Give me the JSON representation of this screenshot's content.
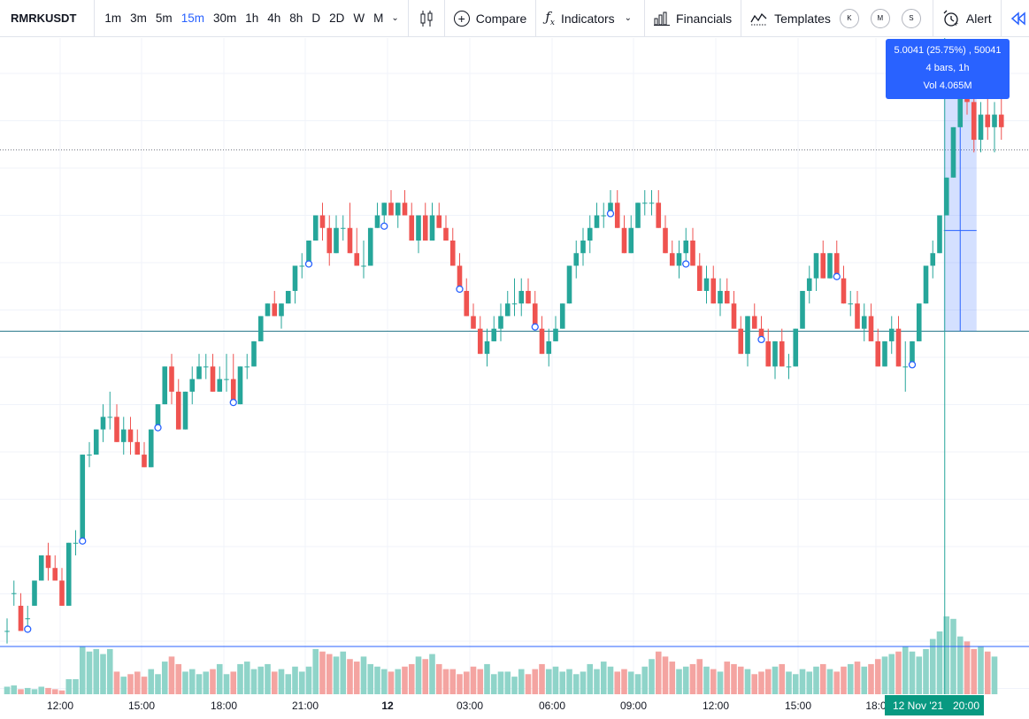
{
  "toolbar": {
    "symbol": "RMRKUSDT",
    "timeframes": [
      "1m",
      "3m",
      "5m",
      "15m",
      "30m",
      "1h",
      "4h",
      "8h",
      "D",
      "2D",
      "W",
      "M"
    ],
    "active_timeframe": "15m",
    "compare_label": "Compare",
    "indicators_label": "Indicators",
    "financials_label": "Financials",
    "templates_label": "Templates",
    "circle_buttons": [
      "K",
      "M",
      "S"
    ],
    "alert_label": "Alert",
    "icons": [
      "candles-icon",
      "plus-circle-icon",
      "fx-icon",
      "financials-icon",
      "templates-icon",
      "alarm-clock-icon",
      "rewind-icon"
    ]
  },
  "measure_tooltip": {
    "line1": "5.0041 (25.75%) , 50041",
    "line2": "4 bars, 1h",
    "line3": "Vol 4.065M"
  },
  "crosshair": {
    "date_label": "12 Nov '21",
    "time_label": "20:00"
  },
  "chart_data": {
    "type": "candlestick",
    "symbol": "RMRKUSDT",
    "interval": "15m",
    "x_tick_labels": [
      "12:00",
      "15:00",
      "18:00",
      "21:00",
      "12",
      "03:00",
      "06:00",
      "09:00",
      "12:00",
      "15:00",
      "18:0"
    ],
    "colors": {
      "up": "#26a69a",
      "down": "#ef5350",
      "up_volume": "#8fd4c9",
      "down_volume": "#f4a4a1",
      "line": "#2a7a8c",
      "measure": "#2962ff",
      "crosshair": "#26a69a"
    },
    "price_ylim": [
      0,
      100
    ],
    "horizontal_lines": [
      {
        "level": 54,
        "color": "#2a7a8c"
      }
    ],
    "price_line_level": 82.8,
    "volume_ylim": [
      0,
      100
    ],
    "volume_ref_line": 38,
    "grid": true,
    "markers": [
      3,
      11,
      22,
      33,
      44,
      55,
      66,
      77,
      88,
      99,
      110,
      121,
      132
    ],
    "candles": [
      [
        0,
        6.4,
        8.4,
        4.4,
        6.4
      ],
      [
        0,
        12.4,
        14.4,
        10.4,
        12.4
      ],
      [
        0,
        10.4,
        12.4,
        6.4,
        6.4
      ],
      [
        0,
        8.4,
        10.4,
        6.4,
        8.4
      ],
      [
        0,
        10.4,
        14.4,
        10.4,
        14.4
      ],
      [
        0,
        14.4,
        18.4,
        14.4,
        18.4
      ],
      [
        0,
        18.4,
        20.4,
        14.4,
        16.4
      ],
      [
        0,
        16.4,
        18.4,
        14.4,
        14.4
      ],
      [
        0,
        14.4,
        16.4,
        10.4,
        10.4
      ],
      [
        0,
        10.4,
        20.4,
        10.4,
        20.4
      ],
      [
        0,
        20.4,
        22.4,
        18.4,
        20.4
      ],
      [
        0,
        20.4,
        34.4,
        20.4,
        34.4
      ],
      [
        0,
        34.4,
        36.4,
        32.4,
        34.4
      ],
      [
        0,
        34.4,
        38.4,
        34.4,
        38.4
      ],
      [
        0,
        38.4,
        42.4,
        36.4,
        40.4
      ],
      [
        0,
        40.4,
        44.4,
        38.4,
        40.4
      ],
      [
        0,
        40.4,
        42.4,
        36.4,
        36.4
      ],
      [
        0,
        36.4,
        40.4,
        34.4,
        38.4
      ],
      [
        0,
        38.4,
        40.4,
        34.4,
        36.4
      ],
      [
        0,
        36.4,
        38.4,
        34.4,
        34.4
      ],
      [
        0,
        34.4,
        36.4,
        32.4,
        32.4
      ],
      [
        0,
        32.4,
        38.4,
        32.4,
        38.4
      ],
      [
        0,
        38.4,
        42.4,
        38.4,
        42.4
      ],
      [
        0,
        42.4,
        48.4,
        42.4,
        48.4
      ],
      [
        0,
        48.4,
        50.4,
        42.4,
        44.4
      ],
      [
        0,
        44.4,
        46.4,
        38.4,
        38.4
      ],
      [
        0,
        38.4,
        44.4,
        38.4,
        44.4
      ],
      [
        0,
        44.4,
        48.4,
        42.4,
        46.4
      ],
      [
        0,
        46.4,
        50.4,
        46.4,
        48.4
      ],
      [
        0,
        48.4,
        50.4,
        46.4,
        48.4
      ],
      [
        0,
        48.4,
        50.4,
        44.4,
        44.4
      ],
      [
        0,
        44.4,
        48.4,
        44.4,
        46.4
      ],
      [
        0,
        46.4,
        50.4,
        44.4,
        46.4
      ],
      [
        0,
        46.4,
        50.4,
        42.4,
        42.4
      ],
      [
        0,
        42.4,
        48.4,
        42.4,
        48.4
      ],
      [
        0,
        48.4,
        50.4,
        46.4,
        48.4
      ],
      [
        0,
        48.4,
        52.4,
        48.4,
        52.4
      ],
      [
        0,
        52.4,
        56.4,
        52.4,
        56.4
      ],
      [
        0,
        56.4,
        58.4,
        56.4,
        58.4
      ],
      [
        0,
        58.4,
        60.4,
        56.4,
        56.4
      ],
      [
        0,
        56.4,
        58.4,
        54.4,
        58.4
      ],
      [
        0,
        58.4,
        60.4,
        58.4,
        60.4
      ],
      [
        0,
        60.4,
        64.4,
        58.4,
        64.4
      ],
      [
        0,
        64.4,
        66.4,
        62.4,
        64.4
      ],
      [
        0,
        64.4,
        68.4,
        64.4,
        68.4
      ],
      [
        0,
        68.4,
        72.4,
        68.4,
        72.4
      ],
      [
        0,
        72.4,
        74.4,
        68.4,
        70.4
      ],
      [
        0,
        70.4,
        72.4,
        64.4,
        66.4
      ],
      [
        0,
        66.4,
        72.4,
        66.4,
        70.4
      ],
      [
        0,
        70.4,
        72.4,
        68.4,
        70.4
      ],
      [
        0,
        70.4,
        74.4,
        66.4,
        66.4
      ],
      [
        0,
        66.4,
        70.4,
        64.4,
        64.4
      ],
      [
        0,
        64.4,
        68.4,
        62.4,
        64.4
      ],
      [
        0,
        64.4,
        70.4,
        64.4,
        70.4
      ],
      [
        0,
        70.4,
        74.4,
        70.4,
        72.4
      ],
      [
        0,
        72.4,
        74.4,
        70.4,
        74.4
      ],
      [
        0,
        74.4,
        76.4,
        72.4,
        72.4
      ],
      [
        0,
        72.4,
        74.4,
        70.4,
        74.4
      ],
      [
        0,
        74.4,
        76.4,
        72.4,
        72.4
      ],
      [
        0,
        72.4,
        74.4,
        68.4,
        68.4
      ],
      [
        0,
        68.4,
        72.4,
        66.4,
        72.4
      ],
      [
        0,
        72.4,
        74.4,
        68.4,
        68.4
      ],
      [
        0,
        68.4,
        74.4,
        68.4,
        72.4
      ],
      [
        0,
        72.4,
        74.4,
        70.4,
        70.4
      ],
      [
        0,
        70.4,
        72.4,
        68.4,
        68.4
      ],
      [
        0,
        68.4,
        70.4,
        64.4,
        64.4
      ],
      [
        0,
        64.4,
        66.4,
        60.4,
        60.4
      ],
      [
        0,
        60.4,
        62.4,
        56.4,
        56.4
      ],
      [
        0,
        56.4,
        58.4,
        54.4,
        54.4
      ],
      [
        0,
        54.4,
        56.4,
        50.4,
        50.4
      ],
      [
        0,
        50.4,
        54.4,
        48.4,
        52.4
      ],
      [
        0,
        52.4,
        56.4,
        52.4,
        54.4
      ],
      [
        0,
        54.4,
        58.4,
        52.4,
        56.4
      ],
      [
        0,
        56.4,
        60.4,
        56.4,
        58.4
      ],
      [
        0,
        58.4,
        62.4,
        56.4,
        58.4
      ],
      [
        0,
        58.4,
        62.4,
        56.4,
        60.4
      ],
      [
        0,
        60.4,
        62.4,
        58.4,
        58.4
      ],
      [
        0,
        58.4,
        60.4,
        54.4,
        54.4
      ],
      [
        0,
        54.4,
        56.4,
        50.4,
        50.4
      ],
      [
        0,
        50.4,
        54.4,
        48.4,
        52.4
      ],
      [
        0,
        52.4,
        56.4,
        52.4,
        54.4
      ],
      [
        0,
        54.4,
        58.4,
        54.4,
        58.4
      ],
      [
        0,
        58.4,
        64.4,
        58.4,
        64.4
      ],
      [
        0,
        64.4,
        68.4,
        62.4,
        66.4
      ],
      [
        0,
        66.4,
        70.4,
        64.4,
        68.4
      ],
      [
        0,
        68.4,
        72.4,
        66.4,
        70.4
      ],
      [
        0,
        70.4,
        74.4,
        70.4,
        72.4
      ],
      [
        0,
        72.4,
        74.4,
        70.4,
        72.4
      ],
      [
        0,
        72.4,
        76.4,
        72.4,
        74.4
      ],
      [
        0,
        74.4,
        76.4,
        70.4,
        70.4
      ],
      [
        0,
        70.4,
        72.4,
        66.4,
        66.4
      ],
      [
        0,
        66.4,
        72.4,
        66.4,
        70.4
      ],
      [
        0,
        70.4,
        74.4,
        70.4,
        74.4
      ],
      [
        0,
        74.4,
        76.4,
        72.4,
        74.4
      ],
      [
        0,
        74.4,
        76.4,
        72.4,
        74.4
      ],
      [
        0,
        74.4,
        76.4,
        70.4,
        70.4
      ],
      [
        0,
        70.4,
        72.4,
        66.4,
        66.4
      ],
      [
        0,
        66.4,
        68.4,
        64.4,
        64.4
      ],
      [
        0,
        64.4,
        68.4,
        62.4,
        66.4
      ],
      [
        0,
        66.4,
        70.4,
        64.4,
        68.4
      ],
      [
        0,
        68.4,
        70.4,
        64.4,
        64.4
      ],
      [
        0,
        64.4,
        66.4,
        60.4,
        60.4
      ],
      [
        0,
        60.4,
        64.4,
        58.4,
        62.4
      ],
      [
        0,
        62.4,
        64.4,
        58.4,
        58.4
      ],
      [
        0,
        58.4,
        62.4,
        56.4,
        60.4
      ],
      [
        0,
        60.4,
        62.4,
        58.4,
        58.4
      ],
      [
        0,
        58.4,
        60.4,
        54.4,
        54.4
      ],
      [
        0,
        54.4,
        56.4,
        50.4,
        50.4
      ],
      [
        0,
        50.4,
        56.4,
        48.4,
        56.4
      ],
      [
        0,
        56.4,
        58.4,
        54.4,
        54.4
      ],
      [
        0,
        54.4,
        56.4,
        52.4,
        52.4
      ],
      [
        0,
        52.4,
        54.4,
        48.4,
        48.4
      ],
      [
        0,
        48.4,
        52.4,
        46.4,
        52.4
      ],
      [
        0,
        52.4,
        54.4,
        48.4,
        48.4
      ],
      [
        0,
        48.4,
        50.4,
        46.4,
        48.4
      ],
      [
        0,
        48.4,
        54.4,
        48.4,
        54.4
      ],
      [
        0,
        54.4,
        60.4,
        54.4,
        60.4
      ],
      [
        0,
        60.4,
        64.4,
        58.4,
        62.4
      ],
      [
        0,
        62.4,
        66.4,
        60.4,
        66.4
      ],
      [
        0,
        66.4,
        68.4,
        62.4,
        62.4
      ],
      [
        0,
        62.4,
        66.4,
        62.4,
        66.4
      ],
      [
        0,
        66.4,
        68.4,
        62.4,
        62.4
      ],
      [
        0,
        62.4,
        64.4,
        58.4,
        58.4
      ],
      [
        0,
        58.4,
        60.4,
        56.4,
        58.4
      ],
      [
        0,
        58.4,
        60.4,
        54.4,
        54.4
      ],
      [
        0,
        54.4,
        58.4,
        52.4,
        56.4
      ],
      [
        0,
        56.4,
        58.4,
        52.4,
        52.4
      ],
      [
        0,
        52.4,
        54.4,
        48.4,
        48.4
      ],
      [
        0,
        48.4,
        52.4,
        48.4,
        52.4
      ],
      [
        0,
        52.4,
        56.4,
        50.4,
        54.4
      ],
      [
        0,
        54.4,
        56.4,
        48.4,
        48.4
      ],
      [
        0,
        48.4,
        52.4,
        44.4,
        48.4
      ],
      [
        0,
        48.4,
        52.4,
        48.4,
        52.4
      ],
      [
        0,
        52.4,
        58.4,
        52.4,
        58.4
      ],
      [
        0,
        58.4,
        64.4,
        58.4,
        64.4
      ],
      [
        0,
        64.4,
        68.4,
        62.4,
        66.4
      ],
      [
        0,
        66.4,
        72.4,
        66.4,
        72.4
      ],
      [
        0,
        72.4,
        78.4,
        72.4,
        78.4
      ],
      [
        0,
        78.4,
        86.4,
        78.4,
        86.4
      ],
      [
        0,
        86.4,
        96.4,
        86.4,
        94.4
      ],
      [
        0,
        94.4,
        98.4,
        88.4,
        90.4
      ],
      [
        0,
        90.4,
        94.4,
        82.4,
        84.4
      ],
      [
        0,
        84.4,
        90.4,
        82.4,
        88.4
      ],
      [
        0,
        88.4,
        92.4,
        84.4,
        86.4
      ],
      [
        0,
        86.4,
        90.4,
        82.4,
        88.4
      ],
      [
        0,
        88.4,
        92.4,
        84.4,
        86.4
      ]
    ],
    "volumes": [
      6,
      7,
      4,
      5,
      4,
      6,
      5,
      4,
      3,
      12,
      12,
      38,
      34,
      36,
      32,
      36,
      18,
      14,
      16,
      18,
      14,
      20,
      16,
      26,
      30,
      24,
      18,
      20,
      16,
      18,
      20,
      24,
      16,
      18,
      24,
      26,
      20,
      22,
      24,
      18,
      20,
      16,
      22,
      18,
      22,
      36,
      34,
      32,
      30,
      34,
      28,
      26,
      30,
      24,
      22,
      20,
      18,
      20,
      22,
      24,
      30,
      28,
      32,
      24,
      20,
      20,
      16,
      18,
      22,
      20,
      24,
      16,
      18,
      18,
      14,
      20,
      16,
      20,
      24,
      20,
      22,
      18,
      20,
      16,
      18,
      24,
      20,
      26,
      22,
      18,
      20,
      18,
      16,
      22,
      28,
      34,
      30,
      26,
      20,
      22,
      24,
      28,
      22,
      20,
      18,
      26,
      24,
      22,
      20,
      16,
      18,
      20,
      22,
      24,
      18,
      16,
      20,
      18,
      22,
      24,
      20,
      18,
      22,
      24,
      26,
      22,
      24,
      28,
      30,
      32,
      34,
      38,
      34,
      30,
      36,
      44,
      50,
      62,
      60,
      46,
      42,
      36,
      38,
      34,
      30
    ]
  }
}
